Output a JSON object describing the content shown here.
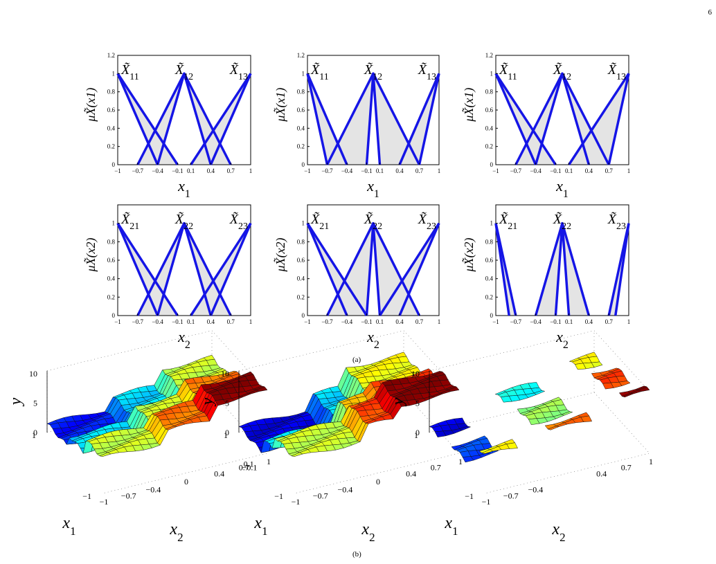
{
  "page_number": "6",
  "captions": {
    "a": "(a)",
    "b": "(b)"
  },
  "colors": {
    "mf_line": "#1515e6",
    "mf_fill": "#e4e4e4",
    "axis": "#000000"
  },
  "chart_data": [
    {
      "type": "line",
      "panel": "a-1",
      "xlabel": "x1",
      "ylabel": "μX̃(x1)",
      "xticks": [
        "−1",
        "−0.7",
        "−0.4",
        "−0.1",
        "0.1",
        "0.4",
        "0.7",
        "1"
      ],
      "yticks": [
        "0",
        "0.2",
        "0.4",
        "0.6",
        "0.8",
        "1",
        "1.2"
      ],
      "xlim": [
        -1,
        1
      ],
      "ylim": [
        0,
        1.2
      ],
      "sets": [
        {
          "name": "X̃11",
          "umf": [
            [
              -1,
              1
            ],
            [
              -0.1,
              0
            ]
          ],
          "lmf": [
            [
              -1,
              1
            ],
            [
              -0.4,
              0
            ]
          ]
        },
        {
          "name": "X̃12",
          "umf": [
            [
              -0.7,
              0
            ],
            [
              0,
              1
            ],
            [
              0.7,
              0
            ]
          ],
          "lmf": [
            [
              -0.4,
              0
            ],
            [
              0,
              1
            ],
            [
              0.4,
              0
            ]
          ]
        },
        {
          "name": "X̃13",
          "umf": [
            [
              0.1,
              0
            ],
            [
              1,
              1
            ]
          ],
          "lmf": [
            [
              0.4,
              0
            ],
            [
              1,
              1
            ]
          ]
        }
      ]
    },
    {
      "type": "line",
      "panel": "a-2",
      "xlabel": "x1",
      "ylabel": "μX̃(x1)",
      "xticks": [
        "−1",
        "−0.7",
        "−0.4",
        "−0.1",
        "0.1",
        "0.4",
        "0.7",
        "1"
      ],
      "yticks": [
        "0",
        "0.2",
        "0.4",
        "0.6",
        "0.8",
        "1",
        "1.2"
      ],
      "xlim": [
        -1,
        1
      ],
      "ylim": [
        0,
        1.2
      ],
      "sets": [
        {
          "name": "X̃11",
          "umf": [
            [
              -1,
              1
            ],
            [
              -0.4,
              0
            ]
          ],
          "lmf": [
            [
              -1,
              1
            ],
            [
              -0.7,
              0
            ]
          ]
        },
        {
          "name": "X̃12",
          "umf": [
            [
              -0.7,
              0
            ],
            [
              0,
              1
            ],
            [
              0.7,
              0
            ]
          ],
          "lmf": [
            [
              -0.1,
              0
            ],
            [
              0,
              1
            ],
            [
              0.1,
              0
            ]
          ]
        },
        {
          "name": "X̃13",
          "umf": [
            [
              0.4,
              0
            ],
            [
              1,
              1
            ]
          ],
          "lmf": [
            [
              0.7,
              0
            ],
            [
              1,
              1
            ]
          ]
        }
      ]
    },
    {
      "type": "line",
      "panel": "a-3",
      "xlabel": "x1",
      "ylabel": "μX̃(x1)",
      "xticks": [
        "−1",
        "−0.7",
        "−0.4",
        "−0.1",
        "0.1",
        "0.4",
        "0.7",
        "1"
      ],
      "yticks": [
        "0",
        "0.2",
        "0.4",
        "0.6",
        "0.8",
        "1",
        "1.2"
      ],
      "xlim": [
        -1,
        1
      ],
      "ylim": [
        0,
        1.2
      ],
      "sets": [
        {
          "name": "X̃11",
          "umf": [
            [
              -1,
              1
            ],
            [
              -0.1,
              0
            ]
          ],
          "lmf": [
            [
              -1,
              1
            ],
            [
              -0.4,
              0
            ]
          ]
        },
        {
          "name": "X̃12",
          "umf": [
            [
              -0.7,
              0
            ],
            [
              0,
              1
            ],
            [
              0.7,
              0
            ]
          ],
          "lmf": [
            [
              -0.4,
              0
            ],
            [
              0,
              1
            ],
            [
              0.4,
              0
            ]
          ]
        },
        {
          "name": "X̃13",
          "umf": [
            [
              0.1,
              0
            ],
            [
              1,
              1
            ]
          ],
          "lmf": [
            [
              0.7,
              0
            ],
            [
              1,
              1
            ]
          ]
        }
      ]
    },
    {
      "type": "line",
      "panel": "a-4",
      "xlabel": "x2",
      "ylabel": "μX̃(x2)",
      "xticks": [
        "−1",
        "−0.7",
        "−0.4",
        "−0.1",
        "0.1",
        "0.4",
        "0.7",
        "1"
      ],
      "yticks": [
        "0",
        "0.2",
        "0.4",
        "0.6",
        "0.8",
        "1"
      ],
      "xlim": [
        -1,
        1
      ],
      "ylim": [
        0,
        1.2
      ],
      "sets": [
        {
          "name": "X̃21",
          "umf": [
            [
              -1,
              1
            ],
            [
              -0.1,
              0
            ]
          ],
          "lmf": [
            [
              -1,
              1
            ],
            [
              -0.4,
              0
            ]
          ]
        },
        {
          "name": "X̃22",
          "umf": [
            [
              -0.7,
              0
            ],
            [
              0,
              1
            ],
            [
              0.7,
              0
            ]
          ],
          "lmf": [
            [
              -0.4,
              0
            ],
            [
              0,
              1
            ],
            [
              0.4,
              0
            ]
          ]
        },
        {
          "name": "X̃23",
          "umf": [
            [
              0.1,
              0
            ],
            [
              1,
              1
            ]
          ],
          "lmf": [
            [
              0.4,
              0
            ],
            [
              1,
              1
            ]
          ]
        }
      ]
    },
    {
      "type": "line",
      "panel": "a-5",
      "xlabel": "x2",
      "ylabel": "μX̃(x2)",
      "xticks": [
        "−1",
        "−0.7",
        "−0.4",
        "−0.1",
        "0.1",
        "0.4",
        "0.7",
        "1"
      ],
      "yticks": [
        "0",
        "0.2",
        "0.4",
        "0.6",
        "0.8",
        "1"
      ],
      "xlim": [
        -1,
        1
      ],
      "ylim": [
        0,
        1.2
      ],
      "sets": [
        {
          "name": "X̃21",
          "umf": [
            [
              -1,
              1
            ],
            [
              -0.1,
              0
            ]
          ],
          "lmf": [
            [
              -1,
              1
            ],
            [
              -0.4,
              0
            ]
          ]
        },
        {
          "name": "X̃22",
          "umf": [
            [
              -0.7,
              0
            ],
            [
              0,
              1
            ],
            [
              0.7,
              0
            ]
          ],
          "lmf": [
            [
              -0.1,
              0
            ],
            [
              0,
              1
            ],
            [
              0.1,
              0
            ]
          ]
        },
        {
          "name": "X̃23",
          "umf": [
            [
              0.1,
              0
            ],
            [
              1,
              1
            ]
          ],
          "lmf": [
            [
              0.4,
              0
            ],
            [
              1,
              1
            ]
          ]
        }
      ]
    },
    {
      "type": "line",
      "panel": "a-6",
      "xlabel": "x2",
      "ylabel": "μX̃(x2)",
      "xticks": [
        "−1",
        "−0.7",
        "−0.4",
        "−0.1",
        "0.1",
        "0.4",
        "0.7",
        "1"
      ],
      "yticks": [
        "0",
        "0.2",
        "0.4",
        "0.6",
        "0.8",
        "1"
      ],
      "xlim": [
        -1,
        1
      ],
      "ylim": [
        0,
        1.2
      ],
      "sets": [
        {
          "name": "X̃21",
          "umf": [
            [
              -1,
              1
            ],
            [
              -0.7,
              0
            ]
          ],
          "lmf": [
            [
              -1,
              1
            ],
            [
              -0.8,
              0
            ]
          ]
        },
        {
          "name": "X̃22",
          "umf": [
            [
              -0.4,
              0
            ],
            [
              0,
              1
            ],
            [
              0.4,
              0
            ]
          ],
          "lmf": [
            [
              -0.1,
              0
            ],
            [
              0,
              1
            ],
            [
              0.1,
              0
            ]
          ]
        },
        {
          "name": "X̃23",
          "umf": [
            [
              0.7,
              0
            ],
            [
              1,
              1
            ]
          ],
          "lmf": [
            [
              0.8,
              0
            ],
            [
              1,
              1
            ]
          ]
        }
      ]
    },
    {
      "type": "heatmap",
      "panel": "b-1",
      "render": "3d-surface",
      "xlabel": "x1",
      "ylabel": "x2",
      "zlabel": "y",
      "zticks": [
        "0",
        "5",
        "10"
      ],
      "x1ticks": [
        "1",
        "−1"
      ],
      "x2ticks": [
        "−1",
        "−0.7",
        "−0.4",
        "0",
        "0.4",
        "0.7",
        "1"
      ],
      "colormap": "jet",
      "plateaus": [
        [
          [
            0,
            7
          ],
          [
            7.8,
            13
          ],
          [
            14,
            21
          ]
        ],
        [
          [
            0,
            7
          ],
          [
            7.8,
            13
          ],
          [
            14,
            21
          ]
        ]
      ],
      "levels": [
        [
          1.5,
          3.5,
          6
        ],
        [
          3.5,
          6,
          8
        ],
        [
          6,
          8,
          10.5
        ]
      ],
      "gaps": false,
      "zlim": [
        0,
        10.5
      ]
    },
    {
      "type": "heatmap",
      "panel": "b-2",
      "render": "3d-surface",
      "xlabel": "x1",
      "ylabel": "x2",
      "zlabel": "y",
      "zticks": [
        "0",
        "5",
        "10"
      ],
      "x1ticks": [
        "1",
        "0.1",
        "−0.1",
        "−1"
      ],
      "x2ticks": [
        "−1",
        "−0.7",
        "−0.4",
        "0",
        "0.4",
        "0.7",
        "1"
      ],
      "colormap": "jet",
      "plateaus": [
        [
          [
            0,
            8
          ],
          [
            9,
            12
          ],
          [
            13,
            21
          ]
        ],
        [
          [
            0,
            8
          ],
          [
            9,
            12
          ],
          [
            13,
            21
          ]
        ]
      ],
      "levels": [
        [
          1,
          3.5,
          6.5
        ],
        [
          3.5,
          7,
          8.5
        ],
        [
          6,
          8.5,
          10.5
        ]
      ],
      "gaps": false,
      "zlim": [
        0,
        10.5
      ]
    },
    {
      "type": "heatmap",
      "panel": "b-3",
      "render": "3d-surface",
      "xlabel": "x1",
      "ylabel": "x2",
      "zlabel": "y",
      "zticks": [
        "0",
        "5",
        "10"
      ],
      "x1ticks": [
        "1",
        "−1"
      ],
      "x2ticks": [
        "−1",
        "−0.7",
        "−0.4",
        "0.4",
        "0.7",
        "1"
      ],
      "colormap": "jet",
      "plateaus": [
        [
          [
            0,
            3
          ],
          [
            8,
            13
          ],
          [
            18,
            21
          ]
        ],
        [
          [
            0,
            4
          ],
          [
            8,
            13
          ],
          [
            17,
            21
          ]
        ]
      ],
      "levels": [
        [
          1,
          4,
          6.5
        ],
        [
          2,
          5.5,
          8.5
        ],
        [
          6.5,
          8,
          10.5
        ]
      ],
      "gaps": true,
      "zlim": [
        0,
        10.5
      ]
    }
  ]
}
